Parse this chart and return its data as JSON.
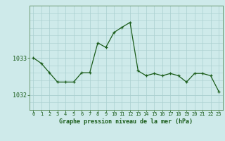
{
  "x": [
    0,
    1,
    2,
    3,
    4,
    5,
    6,
    7,
    8,
    9,
    10,
    11,
    12,
    13,
    14,
    15,
    16,
    17,
    18,
    19,
    20,
    21,
    22,
    23
  ],
  "y": [
    1033.0,
    1032.85,
    1032.6,
    1032.35,
    1032.35,
    1032.35,
    1032.6,
    1032.6,
    1033.4,
    1033.28,
    1033.68,
    1033.82,
    1033.95,
    1032.65,
    1032.52,
    1032.58,
    1032.52,
    1032.58,
    1032.52,
    1032.35,
    1032.58,
    1032.58,
    1032.52,
    1032.1
  ],
  "ylim": [
    1031.6,
    1034.4
  ],
  "yticks": [
    1032,
    1033
  ],
  "xlabel": "Graphe pression niveau de la mer (hPa)",
  "background_color": "#ceeaea",
  "grid_color_v": "#aacfcf",
  "grid_color_h": "#aacfcf",
  "line_color": "#1a5c1a",
  "marker_color": "#1a5c1a",
  "xlabel_color": "#1a5c1a",
  "tick_color": "#1a5c1a",
  "spine_color": "#5c8c5c",
  "figwidth": 3.2,
  "figheight": 2.0,
  "dpi": 100
}
